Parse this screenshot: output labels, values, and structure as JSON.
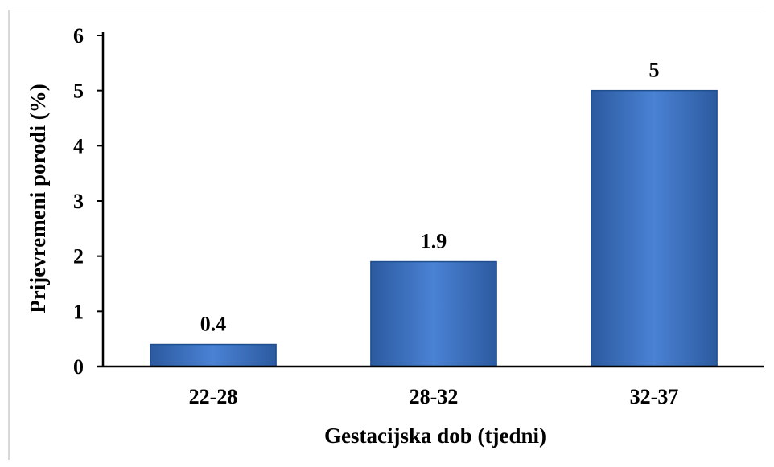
{
  "chart_data": {
    "type": "bar",
    "title": "",
    "xlabel": "Gestacijska dob (tjedni)",
    "ylabel": "Prijevremeni porodi (%)",
    "categories": [
      "22-28",
      "28-32",
      "32-37"
    ],
    "values": [
      0.4,
      1.9,
      5
    ],
    "value_labels": [
      "0.4",
      "1.9",
      "5"
    ],
    "ylim": [
      0,
      6
    ],
    "yticks": [
      0,
      1,
      2,
      3,
      4,
      5,
      6
    ],
    "ytick_labels": [
      "0",
      "1",
      "2",
      "3",
      "4",
      "5",
      "6"
    ],
    "grid": false,
    "bar_color": "#3a6fbf",
    "bar_edge_color": "#1f4e8c"
  }
}
